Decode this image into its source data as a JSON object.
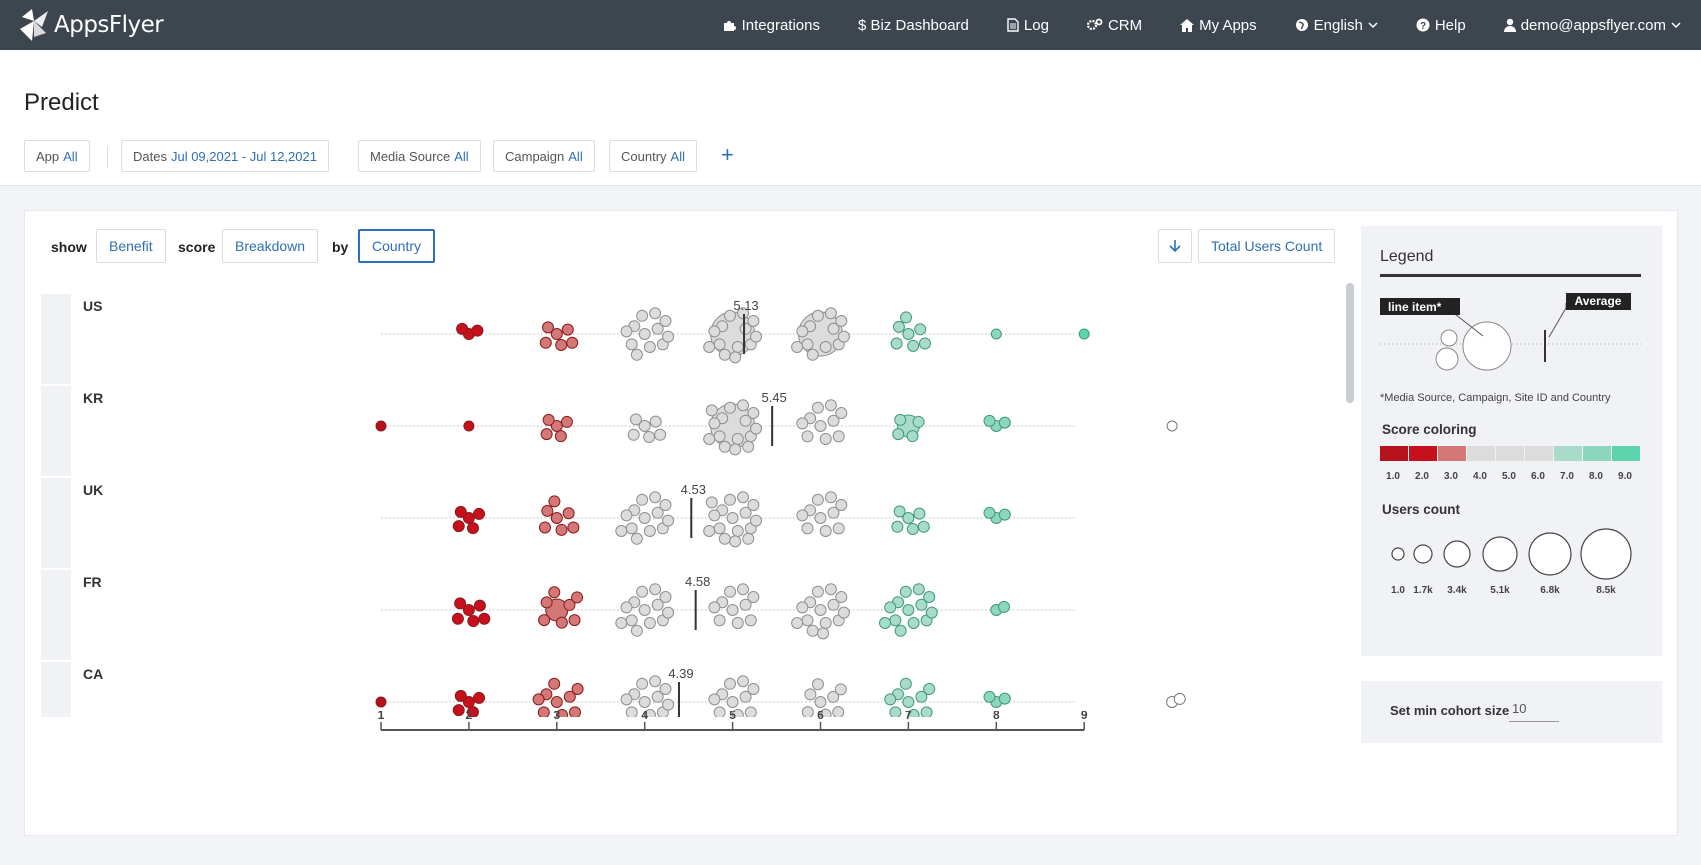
{
  "nav": {
    "brand": "AppsFlyer",
    "items": [
      {
        "label": "Integrations",
        "icon": "puzzle-icon"
      },
      {
        "label": "$ Biz Dashboard",
        "icon": "dollar-icon"
      },
      {
        "label": "Log",
        "icon": "document-icon"
      },
      {
        "label": "CRM",
        "icon": "gears-icon"
      },
      {
        "label": "My Apps",
        "icon": "home-icon"
      },
      {
        "label": "English",
        "icon": "globe-icon"
      },
      {
        "label": "Help",
        "icon": "question-icon"
      },
      {
        "label": "demo@appsflyer.com",
        "icon": "user-icon"
      }
    ]
  },
  "page": {
    "title": "Predict"
  },
  "filters": {
    "app": {
      "label": "App",
      "value": "All"
    },
    "dates": {
      "label": "Dates",
      "value": "Jul 09,2021 - Jul 12,2021"
    },
    "media_source": {
      "label": "Media Source",
      "value": "All"
    },
    "campaign": {
      "label": "Campaign",
      "value": "All"
    },
    "country": {
      "label": "Country",
      "value": "All"
    },
    "add": "+"
  },
  "controls": {
    "show_label": "show",
    "show_value": "Benefit",
    "score_label": "score",
    "score_value": "Breakdown",
    "by_label": "by",
    "by_value": "Country",
    "sort_value": "Total Users Count"
  },
  "colors": {
    "score": [
      "#b5121b",
      "#c8101d",
      "#d47777",
      "#dcdcdc",
      "#dcdcdc",
      "#dcdcdc",
      "#a9dcc8",
      "#8cd6bd",
      "#5cd5ad"
    ],
    "accent": "#2f6fb5"
  },
  "chart_data": {
    "type": "scatter",
    "xlabel": "",
    "ylabel": "",
    "x_ticks": [
      "1",
      "2",
      "3",
      "4",
      "5",
      "6",
      "7",
      "8",
      "9"
    ],
    "xlim": [
      1,
      9
    ],
    "rows": [
      {
        "label": "US",
        "average": 5.13,
        "average_label": "5.13",
        "clusters": [
          {
            "score": 2,
            "count": 3
          },
          {
            "score": 3,
            "count": 6
          },
          {
            "score": 4,
            "count": 12
          },
          {
            "score": 5,
            "count": 14,
            "big": true
          },
          {
            "score": 6,
            "count": 13,
            "big": true
          },
          {
            "score": 7,
            "count": 7
          },
          {
            "score": 8,
            "count": 1
          },
          {
            "score": 9,
            "count": 1
          }
        ]
      },
      {
        "label": "KR",
        "average": 5.45,
        "average_label": "5.45",
        "clusters": [
          {
            "score": 1,
            "count": 1
          },
          {
            "score": 2,
            "count": 1
          },
          {
            "score": 3,
            "count": 5
          },
          {
            "score": 4,
            "count": 6
          },
          {
            "score": 5,
            "count": 16,
            "big": true
          },
          {
            "score": 6,
            "count": 10
          },
          {
            "score": 7,
            "count": 5,
            "big": true
          },
          {
            "score": 8,
            "count": 3
          },
          {
            "score": 10,
            "count": 1,
            "outline": true
          }
        ]
      },
      {
        "label": "UK",
        "average": 4.53,
        "average_label": "4.53",
        "clusters": [
          {
            "score": 2,
            "count": 5
          },
          {
            "score": 3,
            "count": 7
          },
          {
            "score": 4,
            "count": 13
          },
          {
            "score": 5,
            "count": 16
          },
          {
            "score": 6,
            "count": 10
          },
          {
            "score": 7,
            "count": 6
          },
          {
            "score": 8,
            "count": 3
          }
        ]
      },
      {
        "label": "FR",
        "average": 4.58,
        "average_label": "4.58",
        "clusters": [
          {
            "score": 2,
            "count": 6
          },
          {
            "score": 3,
            "count": 8,
            "big": true
          },
          {
            "score": 4,
            "count": 13
          },
          {
            "score": 5,
            "count": 10
          },
          {
            "score": 6,
            "count": 14
          },
          {
            "score": 7,
            "count": 13
          },
          {
            "score": 8,
            "count": 2
          }
        ]
      },
      {
        "label": "CA",
        "average": 4.39,
        "average_label": "4.39",
        "clusters": [
          {
            "score": 1,
            "count": 1
          },
          {
            "score": 2,
            "count": 5
          },
          {
            "score": 3,
            "count": 9
          },
          {
            "score": 4,
            "count": 12
          },
          {
            "score": 5,
            "count": 10
          },
          {
            "score": 6,
            "count": 8
          },
          {
            "score": 7,
            "count": 9
          },
          {
            "score": 8,
            "count": 3
          },
          {
            "score": 10,
            "count": 2,
            "outline": true
          }
        ]
      }
    ]
  },
  "legend": {
    "title": "Legend",
    "line_item_label": "line item*",
    "average_label": "Average",
    "note": "*Media Source, Campaign, Site ID and Country",
    "score_title": "Score coloring",
    "score_ticks": [
      "1.0",
      "2.0",
      "3.0",
      "4.0",
      "5.0",
      "6.0",
      "7.0",
      "8.0",
      "9.0"
    ],
    "users_title": "Users count",
    "users_ticks": [
      "1.0",
      "1.7k",
      "3.4k",
      "5.1k",
      "6.8k",
      "8.5k"
    ]
  },
  "cohort": {
    "label": "Set min cohort size",
    "value": "10"
  }
}
